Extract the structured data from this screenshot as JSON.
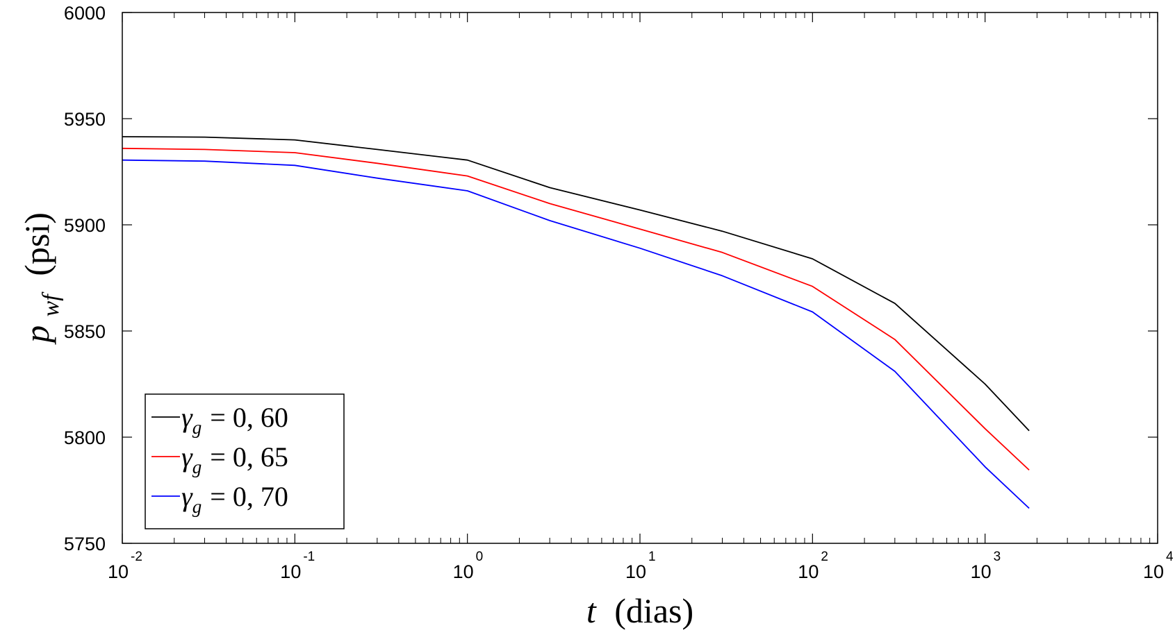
{
  "chart_data": {
    "type": "line",
    "xscale": "log",
    "xlim": [
      0.01,
      10000
    ],
    "ylim": [
      5750,
      6000
    ],
    "x_ticks": [
      {
        "base": "10",
        "exp": "-2"
      },
      {
        "base": "10",
        "exp": "-1"
      },
      {
        "base": "10",
        "exp": "0"
      },
      {
        "base": "10",
        "exp": "1"
      },
      {
        "base": "10",
        "exp": "2"
      },
      {
        "base": "10",
        "exp": "3"
      },
      {
        "base": "10",
        "exp": "4"
      }
    ],
    "y_ticks": [
      "5750",
      "5800",
      "5850",
      "5900",
      "5950",
      "6000"
    ],
    "xlabel": {
      "var": "t",
      "unit": "(dias)"
    },
    "ylabel": {
      "var": "p",
      "sub": "wf",
      "unit": "(psi)"
    },
    "legend_position": "bottom-left",
    "grid": false,
    "x": [
      0.01,
      0.03,
      0.1,
      0.3,
      1,
      3,
      10,
      30,
      100,
      300,
      1000,
      1800
    ],
    "series": [
      {
        "name": "γg = 0,60",
        "symbol": "γ",
        "sub": "g",
        "value_text": "= 0, 60",
        "color": "#000000",
        "values": [
          5941.5,
          5941.3,
          5940.0,
          5935.5,
          5930.5,
          5917.5,
          5907.0,
          5897.0,
          5884.0,
          5863.0,
          5825.0,
          5803.0
        ]
      },
      {
        "name": "γg = 0,65",
        "symbol": "γ",
        "sub": "g",
        "value_text": "= 0, 65",
        "color": "#ff0000",
        "values": [
          5936.0,
          5935.5,
          5934.0,
          5929.0,
          5923.0,
          5910.0,
          5898.0,
          5887.0,
          5871.0,
          5846.0,
          5804.0,
          5784.5
        ]
      },
      {
        "name": "γg = 0,70",
        "symbol": "γ",
        "sub": "g",
        "value_text": "= 0, 70",
        "color": "#0000ff",
        "values": [
          5930.5,
          5930.0,
          5928.0,
          5922.0,
          5916.0,
          5902.0,
          5889.0,
          5876.0,
          5859.0,
          5831.0,
          5786.0,
          5766.5
        ]
      }
    ]
  }
}
